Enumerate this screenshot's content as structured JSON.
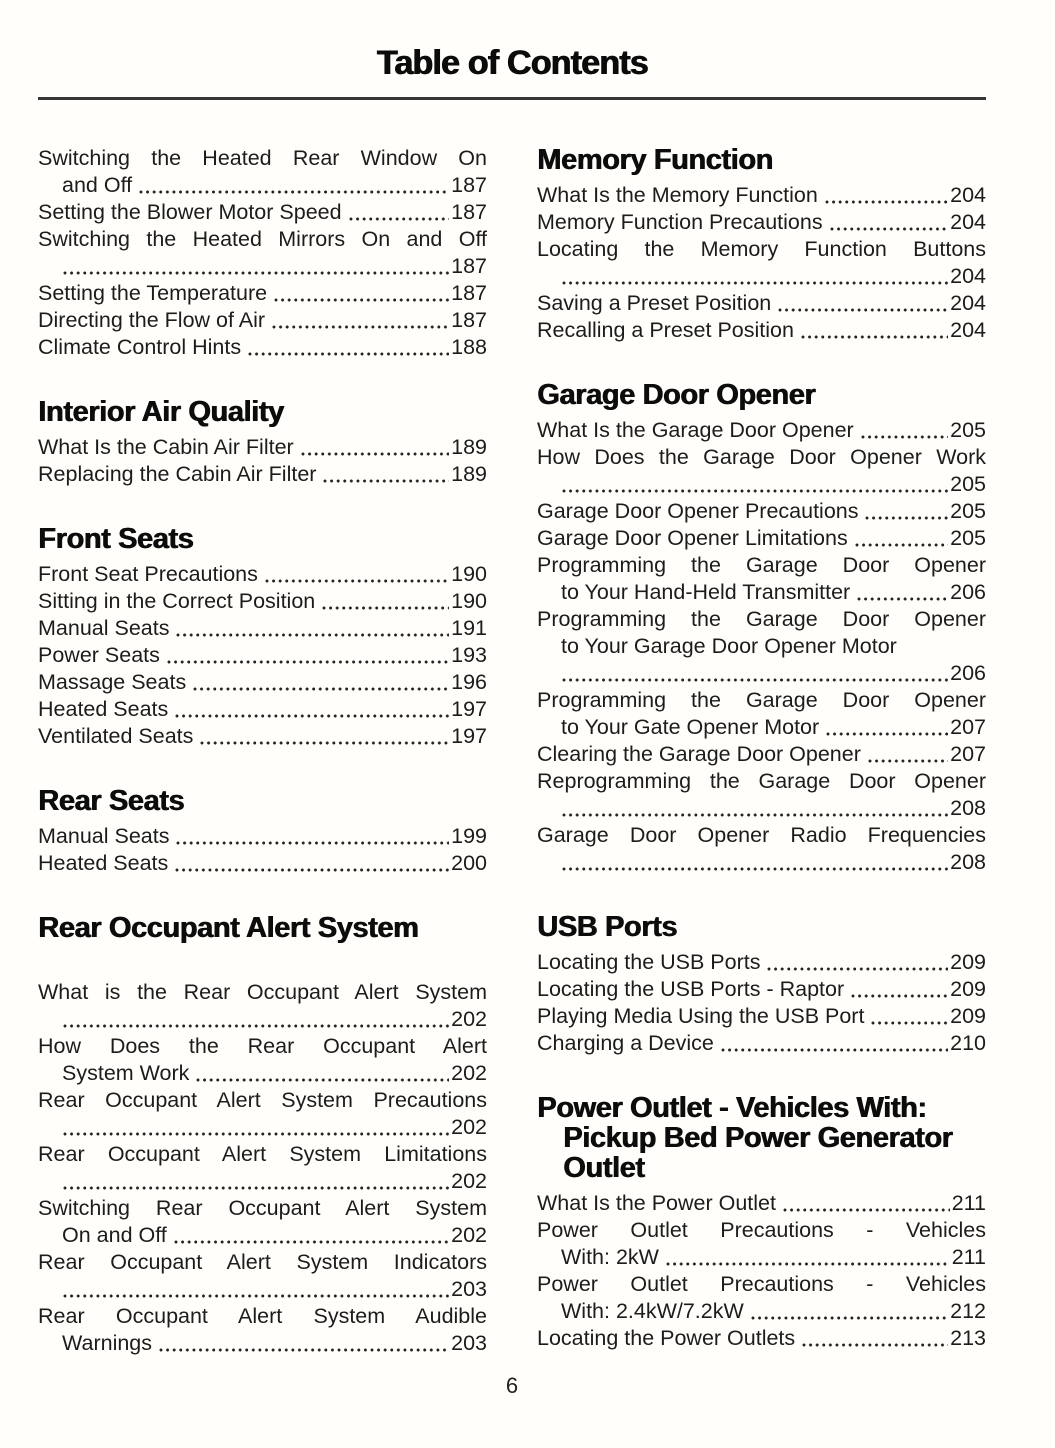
{
  "header": {
    "title": "Table of Contents"
  },
  "footer": {
    "page_number": "6"
  },
  "columns": [
    {
      "name": "left",
      "sections": [
        {
          "heading_lines": [],
          "entries": [
            {
              "lines": [
                "Switching the Heated Rear Window On",
                "and Off"
              ],
              "page": "187"
            },
            {
              "lines": [
                "Setting the Blower Motor Speed"
              ],
              "page": "187"
            },
            {
              "lines": [
                "Switching the Heated Mirrors On and Off",
                ""
              ],
              "page": "187"
            },
            {
              "lines": [
                "Setting the Temperature"
              ],
              "page": "187"
            },
            {
              "lines": [
                "Directing the Flow of Air"
              ],
              "page": "187"
            },
            {
              "lines": [
                "Climate Control Hints"
              ],
              "page": "188"
            }
          ]
        },
        {
          "heading_lines": [
            "Interior Air Quality"
          ],
          "entries": [
            {
              "lines": [
                "What Is the Cabin Air Filter"
              ],
              "page": "189"
            },
            {
              "lines": [
                "Replacing the Cabin Air Filter"
              ],
              "page": "189"
            }
          ]
        },
        {
          "heading_lines": [
            "Front Seats"
          ],
          "entries": [
            {
              "lines": [
                "Front Seat Precautions"
              ],
              "page": "190"
            },
            {
              "lines": [
                "Sitting in the Correct Position"
              ],
              "page": "190"
            },
            {
              "lines": [
                "Manual Seats"
              ],
              "page": "191"
            },
            {
              "lines": [
                "Power Seats"
              ],
              "page": "193"
            },
            {
              "lines": [
                "Massage Seats"
              ],
              "page": "196"
            },
            {
              "lines": [
                "Heated Seats"
              ],
              "page": "197"
            },
            {
              "lines": [
                "Ventilated Seats"
              ],
              "page": "197"
            }
          ]
        },
        {
          "heading_lines": [
            "Rear Seats"
          ],
          "entries": [
            {
              "lines": [
                "Manual Seats"
              ],
              "page": "199"
            },
            {
              "lines": [
                "Heated Seats"
              ],
              "page": "200"
            }
          ]
        },
        {
          "heading_lines": [
            "Rear Occupant Alert System"
          ],
          "extra_gap_after_heading": true,
          "entries": [
            {
              "lines": [
                "What is the Rear Occupant Alert System",
                ""
              ],
              "page": "202"
            },
            {
              "lines": [
                "How Does the Rear Occupant Alert",
                "System Work"
              ],
              "page": "202"
            },
            {
              "lines": [
                "Rear Occupant Alert System Precautions",
                ""
              ],
              "page": "202"
            },
            {
              "lines": [
                "Rear Occupant Alert System Limitations",
                ""
              ],
              "page": "202"
            },
            {
              "lines": [
                "Switching Rear Occupant Alert System",
                "On and Off"
              ],
              "page": "202"
            },
            {
              "lines": [
                "Rear Occupant Alert System Indicators",
                ""
              ],
              "page": "203"
            },
            {
              "lines": [
                "Rear Occupant Alert System Audible",
                "Warnings"
              ],
              "page": "203"
            }
          ]
        }
      ]
    },
    {
      "name": "right",
      "sections": [
        {
          "heading_lines": [
            "Memory Function"
          ],
          "entries": [
            {
              "lines": [
                "What Is the Memory Function"
              ],
              "page": "204"
            },
            {
              "lines": [
                "Memory Function Precautions"
              ],
              "page": "204"
            },
            {
              "lines": [
                "Locating the Memory Function Buttons",
                ""
              ],
              "page": "204"
            },
            {
              "lines": [
                "Saving a Preset Position"
              ],
              "page": "204"
            },
            {
              "lines": [
                "Recalling a Preset Position"
              ],
              "page": "204"
            }
          ]
        },
        {
          "heading_lines": [
            "Garage Door Opener"
          ],
          "entries": [
            {
              "lines": [
                "What Is the Garage Door Opener"
              ],
              "page": "205"
            },
            {
              "lines": [
                "How Does the Garage Door Opener Work",
                ""
              ],
              "page": "205"
            },
            {
              "lines": [
                "Garage Door Opener Precautions"
              ],
              "page": "205"
            },
            {
              "lines": [
                "Garage Door Opener Limitations"
              ],
              "page": "205"
            },
            {
              "lines": [
                "Programming the Garage Door Opener",
                "to Your Hand-Held Transmitter"
              ],
              "page": "206"
            },
            {
              "lines": [
                "Programming the Garage Door Opener",
                "to Your Garage Door Opener Motor",
                ""
              ],
              "page": "206"
            },
            {
              "lines": [
                "Programming the Garage Door Opener",
                "to Your Gate Opener Motor"
              ],
              "page": "207"
            },
            {
              "lines": [
                "Clearing the Garage Door Opener"
              ],
              "page": "207"
            },
            {
              "lines": [
                "Reprogramming the Garage Door Opener",
                ""
              ],
              "page": "208"
            },
            {
              "lines": [
                "Garage Door Opener Radio Frequencies",
                ""
              ],
              "page": "208"
            }
          ]
        },
        {
          "heading_lines": [
            "USB Ports"
          ],
          "entries": [
            {
              "lines": [
                "Locating the USB Ports"
              ],
              "page": "209"
            },
            {
              "lines": [
                "Locating the USB Ports - Raptor"
              ],
              "page": "209"
            },
            {
              "lines": [
                "Playing Media Using the USB Port"
              ],
              "page": "209"
            },
            {
              "lines": [
                "Charging a Device"
              ],
              "page": "210"
            }
          ]
        },
        {
          "heading_lines": [
            "Power Outlet - Vehicles With:",
            "Pickup Bed Power Generator",
            "Outlet"
          ],
          "entries": [
            {
              "lines": [
                "What Is the Power Outlet"
              ],
              "page": "211"
            },
            {
              "lines": [
                "Power Outlet Precautions - Vehicles",
                "With: 2kW"
              ],
              "page": "211"
            },
            {
              "lines": [
                "Power Outlet Precautions - Vehicles",
                "With: 2.4kW/7.2kW"
              ],
              "page": "212"
            },
            {
              "lines": [
                "Locating the Power Outlets"
              ],
              "page": "213"
            }
          ]
        }
      ]
    }
  ]
}
